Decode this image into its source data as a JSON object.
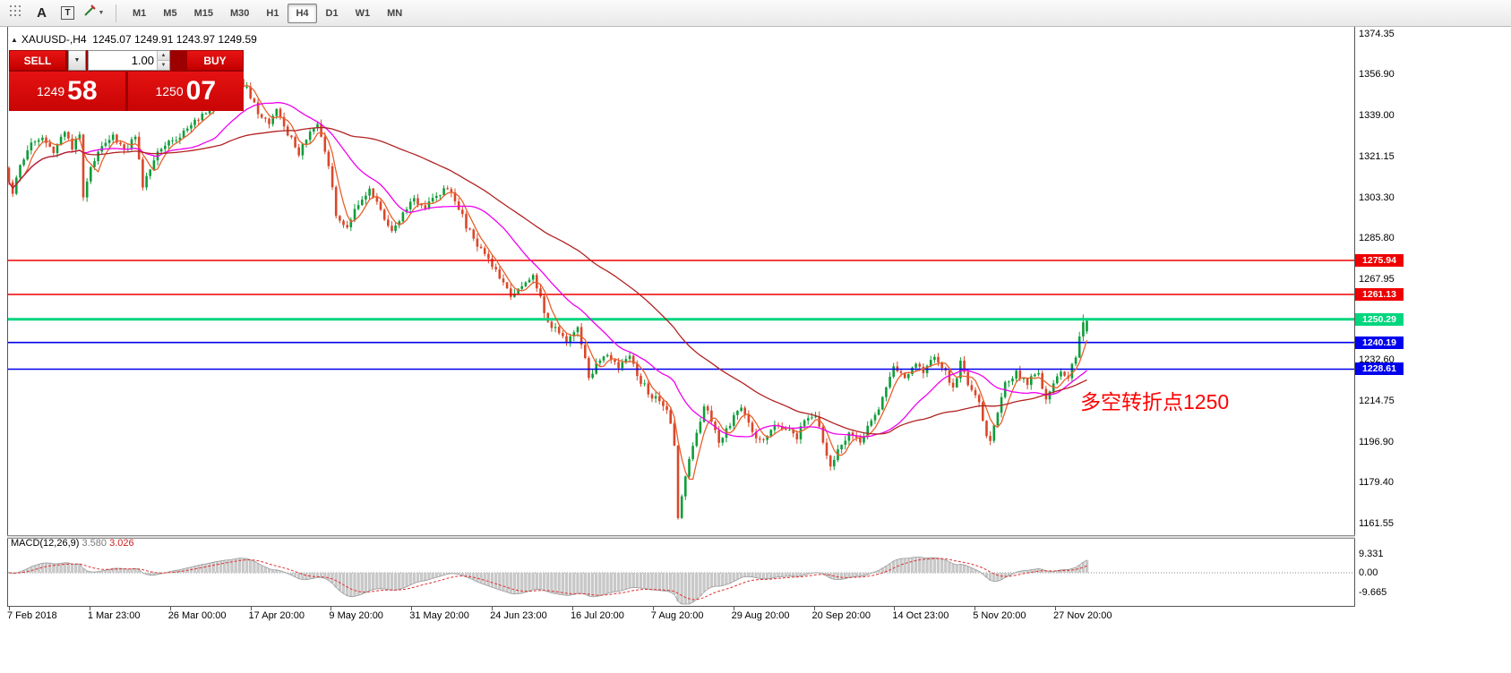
{
  "toolbar": {
    "tools": {
      "a_label": "A",
      "t_label": "T"
    },
    "timeframes": [
      "M1",
      "M5",
      "M15",
      "M30",
      "H1",
      "H4",
      "D1",
      "W1",
      "MN"
    ],
    "active_timeframe": "H4"
  },
  "chart": {
    "ohlc_header": {
      "symbol": "XAUUSD-,H4",
      "values": "1245.07 1249.91 1243.97 1249.59"
    },
    "trade_panel": {
      "sell_label": "SELL",
      "buy_label": "BUY",
      "lot_size": "1.00",
      "sell_price_small": "1249",
      "sell_price_big": "58",
      "buy_price_small": "1250",
      "buy_price_big": "07"
    },
    "annotation": {
      "text": "多空转折点1250",
      "color": "#ff0000"
    },
    "macd_header": {
      "label": "MACD(12,26,9)",
      "main_value": "3.580",
      "signal_value": "3.026"
    }
  },
  "chart_data": {
    "type": "candlestick",
    "symbol": "XAUUSD-",
    "timeframe": "H4",
    "last_candle": {
      "open": 1245.07,
      "high": 1249.91,
      "low": 1243.97,
      "close": 1249.59
    },
    "y_axis_range": [
      1161.55,
      1374.35
    ],
    "y_ticks": [
      "1374.35",
      "1356.90",
      "1339.00",
      "1321.15",
      "1303.30",
      "1285.80",
      "1267.95",
      "1232.60",
      "1214.75",
      "1196.90",
      "1179.40",
      "1161.55"
    ],
    "time_ticks": [
      "7 Feb 2018",
      "1 Mar 23:00",
      "26 Mar 00:00",
      "17 Apr 20:00",
      "9 May 20:00",
      "31 May 20:00",
      "24 Jun 23:00",
      "16 Jul 20:00",
      "7 Aug 20:00",
      "29 Aug 20:00",
      "20 Sep 20:00",
      "14 Oct 23:00",
      "5 Nov 20:00",
      "27 Nov 20:00"
    ],
    "hlines": [
      {
        "price": 1275.94,
        "label": "1275.94",
        "color": "#ee0000",
        "width": 1.4
      },
      {
        "price": 1261.13,
        "label": "1261.13",
        "color": "#ee0000",
        "width": 1.4
      },
      {
        "price": 1250.29,
        "label": "1250.29",
        "color": "#00d67e",
        "width": 3
      },
      {
        "price": 1240.19,
        "label": "1240.19",
        "color": "#0000ee",
        "width": 1.6
      },
      {
        "price": 1228.61,
        "label": "1228.61",
        "color": "#0000ee",
        "width": 1.6
      }
    ],
    "candle_count": 291,
    "price_path": [
      [
        0,
        1316
      ],
      [
        2,
        1306
      ],
      [
        4,
        1318
      ],
      [
        7,
        1326
      ],
      [
        10,
        1330
      ],
      [
        13,
        1322
      ],
      [
        16,
        1332
      ],
      [
        18,
        1324
      ],
      [
        20,
        1331
      ],
      [
        21,
        1303
      ],
      [
        23,
        1317
      ],
      [
        26,
        1327
      ],
      [
        29,
        1331
      ],
      [
        32,
        1323
      ],
      [
        35,
        1331
      ],
      [
        37,
        1308
      ],
      [
        40,
        1320
      ],
      [
        43,
        1327
      ],
      [
        47,
        1330
      ],
      [
        51,
        1336
      ],
      [
        55,
        1342
      ],
      [
        59,
        1348
      ],
      [
        63,
        1354
      ],
      [
        65,
        1351
      ],
      [
        68,
        1341
      ],
      [
        71,
        1336
      ],
      [
        73,
        1342
      ],
      [
        76,
        1331
      ],
      [
        79,
        1323
      ],
      [
        82,
        1332
      ],
      [
        84,
        1336
      ],
      [
        87,
        1317
      ],
      [
        89,
        1296
      ],
      [
        92,
        1291
      ],
      [
        95,
        1301
      ],
      [
        98,
        1307
      ],
      [
        101,
        1297
      ],
      [
        104,
        1289
      ],
      [
        107,
        1297
      ],
      [
        110,
        1303
      ],
      [
        113,
        1299
      ],
      [
        116,
        1304
      ],
      [
        119,
        1308
      ],
      [
        121,
        1303
      ],
      [
        124,
        1291
      ],
      [
        127,
        1282
      ],
      [
        130,
        1276
      ],
      [
        133,
        1269
      ],
      [
        136,
        1261
      ],
      [
        139,
        1266
      ],
      [
        142,
        1270
      ],
      [
        144,
        1259
      ],
      [
        146,
        1249
      ],
      [
        149,
        1244
      ],
      [
        151,
        1240
      ],
      [
        154,
        1246
      ],
      [
        156,
        1233
      ],
      [
        157,
        1225
      ],
      [
        159,
        1231
      ],
      [
        162,
        1235
      ],
      [
        165,
        1230
      ],
      [
        168,
        1233
      ],
      [
        171,
        1223
      ],
      [
        174,
        1217
      ],
      [
        177,
        1213
      ],
      [
        179,
        1206
      ],
      [
        180,
        1196
      ],
      [
        181,
        1163
      ],
      [
        182,
        1173
      ],
      [
        184,
        1189
      ],
      [
        186,
        1201
      ],
      [
        188,
        1213
      ],
      [
        190,
        1207
      ],
      [
        192,
        1197
      ],
      [
        195,
        1205
      ],
      [
        198,
        1212
      ],
      [
        201,
        1201
      ],
      [
        204,
        1197
      ],
      [
        207,
        1205
      ],
      [
        210,
        1202
      ],
      [
        213,
        1199
      ],
      [
        215,
        1207
      ],
      [
        218,
        1209
      ],
      [
        220,
        1197
      ],
      [
        222,
        1186
      ],
      [
        224,
        1193
      ],
      [
        227,
        1201
      ],
      [
        230,
        1197
      ],
      [
        233,
        1207
      ],
      [
        235,
        1211
      ],
      [
        237,
        1220
      ],
      [
        239,
        1229
      ],
      [
        242,
        1225
      ],
      [
        245,
        1232
      ],
      [
        247,
        1228
      ],
      [
        250,
        1233
      ],
      [
        253,
        1227
      ],
      [
        255,
        1221
      ],
      [
        257,
        1231
      ],
      [
        259,
        1223
      ],
      [
        262,
        1215
      ],
      [
        264,
        1200
      ],
      [
        265,
        1197
      ],
      [
        267,
        1209
      ],
      [
        269,
        1223
      ],
      [
        272,
        1227
      ],
      [
        275,
        1223
      ],
      [
        278,
        1227
      ],
      [
        280,
        1215
      ],
      [
        282,
        1223
      ],
      [
        284,
        1227
      ],
      [
        286,
        1225
      ],
      [
        288,
        1234
      ],
      [
        290,
        1249.6
      ]
    ],
    "moving_averages": [
      {
        "speed": "fast",
        "period": 5,
        "color": "#e8602c"
      },
      {
        "speed": "medium",
        "period": 21,
        "color": "#f000f0"
      },
      {
        "speed": "slow",
        "period": 58,
        "color": "#b22222"
      }
    ],
    "macd": {
      "fast": 12,
      "slow": 26,
      "signal_period": 9,
      "main_value": 3.58,
      "signal_value": 3.026,
      "axis_ticks": [
        "9.331",
        "0.00",
        "-9.665"
      ]
    },
    "colors": {
      "bull": "#0f9d3a",
      "bear": "#d9482b",
      "histogram": "#c8c8c8",
      "histogram_edge": "#9a9a9a",
      "macd_signal": "#e03030"
    }
  }
}
